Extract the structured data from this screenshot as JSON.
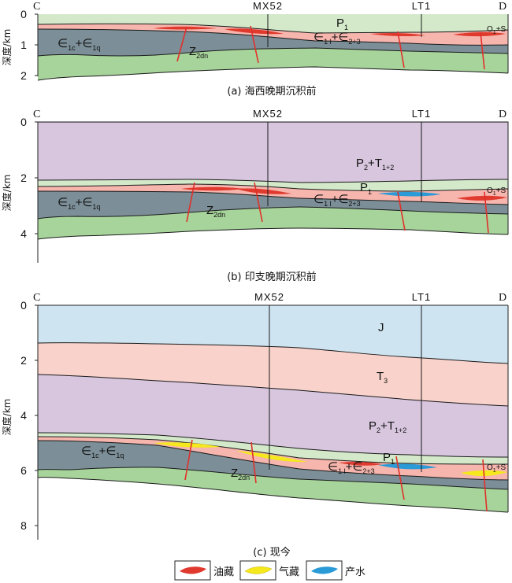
{
  "endpoints": {
    "left": "C",
    "right": "D"
  },
  "wells": [
    "MX52",
    "LT1"
  ],
  "y_axis_label": "深度/km",
  "panels": [
    {
      "caption": "(a) 海西晚期沉积前",
      "ticks": [
        "0",
        "1",
        "2"
      ],
      "labels": {
        "p1": "P",
        "p1_sub": "1",
        "e_mid": "∈",
        "e_mid_sub1": "1 l",
        "e_mid_plus": "+∈",
        "e_mid_sub2": "2+3",
        "e_low": "∈",
        "e_low_sub1": "1c",
        "e_low_plus": "+∈",
        "e_low_sub2": "1q",
        "z": "Z",
        "z_sub": "2dn",
        "os": "O",
        "os_sub": "1",
        "os_plus": "+S"
      }
    },
    {
      "caption": "(b) 印支晚期沉积前",
      "ticks": [
        "0",
        "2",
        "4"
      ],
      "labels": {
        "pt": "P",
        "pt_sub1": "2",
        "pt_plus": "+T",
        "pt_sub2": "1+2",
        "p1": "P",
        "p1_sub": "1",
        "e_mid": "∈",
        "e_mid_sub1": "1 l",
        "e_mid_plus": "+∈",
        "e_mid_sub2": "2+3",
        "e_low": "∈",
        "e_low_sub1": "1c",
        "e_low_plus": "+∈",
        "e_low_sub2": "1q",
        "z": "Z",
        "z_sub": "2dn",
        "os": "O",
        "os_sub": "1",
        "os_plus": "+S"
      }
    },
    {
      "caption": "(c) 现今",
      "ticks": [
        "0",
        "2",
        "4",
        "6",
        "8"
      ],
      "labels": {
        "j": "J",
        "t3": "T",
        "t3_sub": "3",
        "pt": "P",
        "pt_sub1": "2",
        "pt_plus": "+T",
        "pt_sub2": "1+2",
        "p1": "P",
        "p1_sub": "1",
        "e_mid": "∈",
        "e_mid_sub1": "1 l",
        "e_mid_plus": "+∈",
        "e_mid_sub2": "2+3",
        "e_low": "∈",
        "e_low_sub1": "1c",
        "e_low_plus": "+∈",
        "e_low_sub2": "1q",
        "z": "Z",
        "z_sub": "2dn",
        "os": "O",
        "os_sub": "1",
        "os_plus": "+S"
      }
    }
  ],
  "legend": [
    {
      "label": "油藏",
      "color": "#e03a2e"
    },
    {
      "label": "气藏",
      "color": "#f5e81c"
    },
    {
      "label": "产水",
      "color": "#2a9bd6"
    }
  ],
  "colors": {
    "top_green": "#d3e9c9",
    "pink": "#f6b5ad",
    "dark_gray": "#7c8f98",
    "green": "#a7d49b",
    "purple": "#d7c6de",
    "salmon": "#f9d3cb",
    "blue": "#cfe4f1",
    "oil": "#e03a2e",
    "gas": "#f5e81c",
    "water": "#2a9bd6",
    "fault": "#e0302a"
  }
}
